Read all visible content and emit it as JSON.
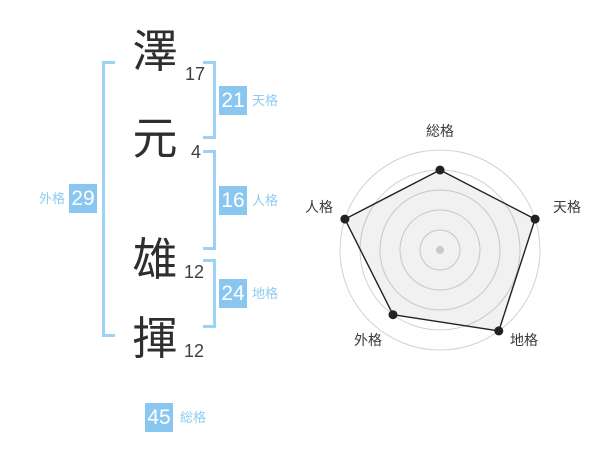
{
  "colors": {
    "accent_blue": "#8ac7f0",
    "accent_label_blue": "#8fcbf2",
    "bracket_blue": "#9dd2f5",
    "kanji_text": "#2e2e2e",
    "stroke_text": "#3f3f3f",
    "chart_label": "#3a3a3a",
    "chart_line": "#222222",
    "chart_grid": "#d2d2d2",
    "chart_center_dot": "#c8c8c8",
    "chart_fill": "rgba(0,0,0,0.055)",
    "value_text": "#ffffff"
  },
  "name_analysis": {
    "characters": [
      {
        "char": "澤",
        "strokes": "17"
      },
      {
        "char": "元",
        "strokes": "4"
      },
      {
        "char": "雄",
        "strokes": "12"
      },
      {
        "char": "揮",
        "strokes": "12"
      }
    ],
    "kaku": {
      "tenkaku": {
        "label": "天格",
        "value": "21"
      },
      "jinkaku": {
        "label": "人格",
        "value": "16"
      },
      "chikaku": {
        "label": "地格",
        "value": "24"
      },
      "gaikaku": {
        "label": "外格",
        "value": "29"
      },
      "soukaku": {
        "label": "総格",
        "value": "45"
      }
    }
  },
  "chart_data": {
    "type": "radar",
    "categories": [
      "総格",
      "天格",
      "地格",
      "外格",
      "人格"
    ],
    "values": [
      4,
      5,
      5,
      4,
      5
    ],
    "max": 5,
    "rings": 5,
    "start_angle_deg": 90,
    "direction": "clockwise",
    "grid": "concentric-circles",
    "legend": "none"
  }
}
